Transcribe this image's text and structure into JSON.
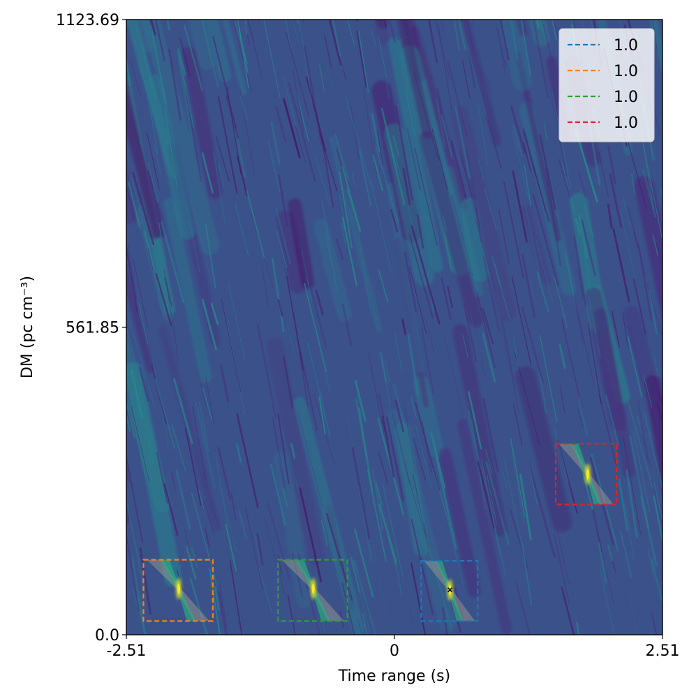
{
  "chart_data": {
    "type": "heatmap",
    "title": "",
    "xlabel": "Time range (s)",
    "ylabel": "DM (pc cm⁻³)",
    "xlim": [
      -2.51,
      2.51
    ],
    "ylim": [
      0.0,
      1123.69
    ],
    "x_ticks": [
      {
        "value": -2.51,
        "label": "-2.51"
      },
      {
        "value": 0,
        "label": "0"
      },
      {
        "value": 2.51,
        "label": "2.51"
      }
    ],
    "y_ticks": [
      {
        "value": 0.0,
        "label": "0.0"
      },
      {
        "value": 561.85,
        "label": "561.85"
      },
      {
        "value": 1123.69,
        "label": "1123.69"
      }
    ],
    "colormap": "viridis",
    "background_level": 0.25,
    "grid": false,
    "legend_position": "top-right",
    "detections": [
      {
        "label": "1.0",
        "color": "#1f77b4",
        "x_range": [
          0.25,
          0.78
        ],
        "dm_range": [
          25,
          135
        ],
        "peak_x": 0.52,
        "peak_dm": 82,
        "marker": true
      },
      {
        "label": "1.0",
        "color": "#ff7f0e",
        "x_range": [
          -2.35,
          -1.7
        ],
        "dm_range": [
          25,
          137
        ],
        "peak_x": -2.02,
        "peak_dm": 84,
        "marker": false
      },
      {
        "label": "1.0",
        "color": "#2ca02c",
        "x_range": [
          -1.09,
          -0.44
        ],
        "dm_range": [
          25,
          137
        ],
        "peak_x": -0.76,
        "peak_dm": 84,
        "marker": false
      },
      {
        "label": "1.0",
        "color": "#d62728",
        "x_range": [
          1.51,
          2.08
        ],
        "dm_range": [
          238,
          349
        ],
        "peak_x": 1.81,
        "peak_dm": 293,
        "marker": false
      }
    ]
  }
}
